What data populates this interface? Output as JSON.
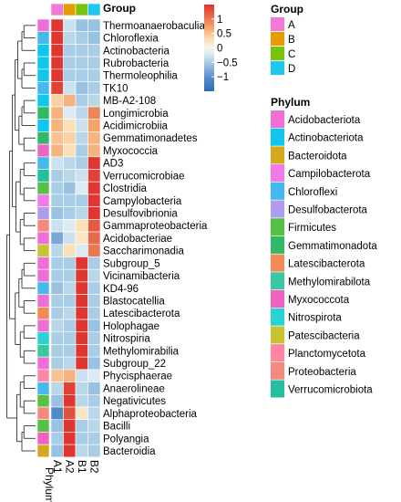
{
  "chart_data": {
    "type": "heatmap",
    "columns": [
      "A1",
      "A2",
      "B1",
      "B2"
    ],
    "column_groups": [
      "A",
      "A",
      "B",
      "B"
    ],
    "annotation_labels": {
      "top": "Group",
      "side": "Phylum"
    },
    "rows": [
      {
        "name": "Thermoanaerobaculia",
        "phylum": "Acidobacteriota",
        "values": [
          1.5,
          -0.3,
          -0.6,
          -0.6
        ]
      },
      {
        "name": "Chloroflexia",
        "phylum": "Chloroflexi",
        "values": [
          1.5,
          -0.4,
          -0.5,
          -0.6
        ]
      },
      {
        "name": "Actinobacteria",
        "phylum": "Actinobacteriota",
        "values": [
          1.5,
          -0.5,
          -0.5,
          -0.5
        ]
      },
      {
        "name": "Rubrobacteria",
        "phylum": "Actinobacteriota",
        "values": [
          1.5,
          -0.5,
          -0.5,
          -0.5
        ]
      },
      {
        "name": "Thermoleophilia",
        "phylum": "Actinobacteriota",
        "values": [
          1.5,
          -0.5,
          -0.5,
          -0.5
        ]
      },
      {
        "name": "TK10",
        "phylum": "Chloroflexi",
        "values": [
          1.4,
          -0.3,
          -0.6,
          -0.5
        ]
      },
      {
        "name": "MB-A2-108",
        "phylum": "Actinobacteriota",
        "values": [
          0.4,
          0.6,
          -0.5,
          -0.4
        ]
      },
      {
        "name": "Longimicrobia",
        "phylum": "Gemmatimonadota",
        "values": [
          0.6,
          -0.2,
          -0.4,
          0.9
        ]
      },
      {
        "name": "Acidimicrobiia",
        "phylum": "Actinobacteriota",
        "values": [
          0.6,
          0.3,
          -0.3,
          0.7
        ]
      },
      {
        "name": "Gemmatimonadetes",
        "phylum": "Gemmatimonadota",
        "values": [
          0.5,
          0.4,
          -0.4,
          0.6
        ]
      },
      {
        "name": "Myxococcia",
        "phylum": "Myxococcota",
        "values": [
          0.6,
          0.3,
          -0.5,
          0.6
        ]
      },
      {
        "name": "AD3",
        "phylum": "Chloroflexi",
        "values": [
          -0.3,
          -0.4,
          -0.5,
          1.5
        ]
      },
      {
        "name": "Verrucomicrobiae",
        "phylum": "Verrucomicrobiota",
        "values": [
          -0.5,
          -0.4,
          -0.3,
          1.4
        ]
      },
      {
        "name": "Clostridia",
        "phylum": "Firmicutes",
        "values": [
          -0.5,
          -0.6,
          -0.2,
          1.5
        ]
      },
      {
        "name": "Campylobacteria",
        "phylum": "Campilobacterota",
        "values": [
          -0.5,
          -0.5,
          -0.5,
          1.5
        ]
      },
      {
        "name": "Desulfovibrionia",
        "phylum": "Desulfobacterota",
        "values": [
          -0.6,
          -0.5,
          -0.4,
          1.5
        ]
      },
      {
        "name": "Gammaproteobacteria",
        "phylum": "Proteobacteria",
        "values": [
          -0.3,
          -0.2,
          0.3,
          1.2
        ]
      },
      {
        "name": "Acidobacteriae",
        "phylum": "Acidobacteriota",
        "values": [
          -0.8,
          -0.3,
          0.2,
          1.1
        ]
      },
      {
        "name": "Saccharimonadia",
        "phylum": "Patescibacteria",
        "values": [
          -0.4,
          0.3,
          -0.2,
          1.0
        ]
      },
      {
        "name": "Subgroup_5",
        "phylum": "Acidobacteriota",
        "values": [
          -0.5,
          -0.5,
          1.5,
          -0.5
        ]
      },
      {
        "name": "Vicinamibacteria",
        "phylum": "Acidobacteriota",
        "values": [
          -0.5,
          -0.5,
          1.5,
          -0.4
        ]
      },
      {
        "name": "KD4-96",
        "phylum": "Chloroflexi",
        "values": [
          -0.6,
          -0.4,
          1.5,
          -0.5
        ]
      },
      {
        "name": "Blastocatellia",
        "phylum": "Acidobacteriota",
        "values": [
          -0.5,
          -0.5,
          1.5,
          -0.5
        ]
      },
      {
        "name": "Latescibacterota",
        "phylum": "Latescibacterota",
        "values": [
          -0.5,
          -0.4,
          1.5,
          -0.5
        ]
      },
      {
        "name": "Holophagae",
        "phylum": "Acidobacteriota",
        "values": [
          -0.4,
          -0.5,
          1.5,
          -0.6
        ]
      },
      {
        "name": "Nitrospiria",
        "phylum": "Nitrospirota",
        "values": [
          -0.5,
          -0.5,
          1.5,
          -0.5
        ]
      },
      {
        "name": "Methylomirabilia",
        "phylum": "Methylomirabilota",
        "values": [
          -0.5,
          -0.5,
          1.5,
          -0.5
        ]
      },
      {
        "name": "Subgroup_22",
        "phylum": "Acidobacteriota",
        "values": [
          -0.5,
          -0.4,
          1.5,
          -0.6
        ]
      },
      {
        "name": "Phycisphaerae",
        "phylum": "Planctomycetota",
        "values": [
          0.5,
          0.6,
          -0.3,
          -0.2
        ]
      },
      {
        "name": "Anaerolineae",
        "phylum": "Chloroflexi",
        "values": [
          -0.4,
          1.4,
          -0.4,
          -0.6
        ]
      },
      {
        "name": "Negativicutes",
        "phylum": "Firmicutes",
        "values": [
          -0.6,
          1.5,
          -0.4,
          -0.5
        ]
      },
      {
        "name": "Alphaproteobacteria",
        "phylum": "Proteobacteria",
        "values": [
          -1.1,
          1.3,
          0.2,
          -0.4
        ]
      },
      {
        "name": "Bacilli",
        "phylum": "Firmicutes",
        "values": [
          -0.6,
          1.5,
          -0.5,
          -0.4
        ]
      },
      {
        "name": "Polyangia",
        "phylum": "Myxococcota",
        "values": [
          -0.5,
          1.5,
          -0.5,
          -0.5
        ]
      },
      {
        "name": "Bacteroidia",
        "phylum": "Bacteroidota",
        "values": [
          -0.6,
          1.5,
          -0.4,
          -0.5
        ]
      }
    ],
    "color_scale": {
      "range": [
        -1.5,
        1.5
      ],
      "ticks": [
        1,
        0.5,
        0,
        -0.5,
        -1
      ],
      "tick_labels": [
        "1",
        "0.5",
        "0",
        "−0.5",
        "−1"
      ],
      "stops": [
        {
          "value": -1.5,
          "color": "#2f6ab4"
        },
        {
          "value": -1.0,
          "color": "#5a8fcb"
        },
        {
          "value": -0.5,
          "color": "#a9cde6"
        },
        {
          "value": -0.2,
          "color": "#dcebf3"
        },
        {
          "value": 0.0,
          "color": "#f5f3ea"
        },
        {
          "value": 0.3,
          "color": "#fbe0b7"
        },
        {
          "value": 0.7,
          "color": "#f5a46b"
        },
        {
          "value": 1.2,
          "color": "#e65a43"
        },
        {
          "value": 1.5,
          "color": "#e03530"
        }
      ]
    },
    "group_legend": {
      "title": "Group",
      "items": [
        {
          "label": "A",
          "color": "#f379d7"
        },
        {
          "label": "B",
          "color": "#e69c00"
        },
        {
          "label": "C",
          "color": "#77c40e"
        },
        {
          "label": "D",
          "color": "#1fc6ef"
        }
      ]
    },
    "phylum_legend": {
      "title": "Phylum",
      "items": [
        {
          "label": "Acidobacteriota",
          "color": "#ee6fd6"
        },
        {
          "label": "Actinobacteriota",
          "color": "#10c6ef"
        },
        {
          "label": "Bacteroidota",
          "color": "#d5a91e"
        },
        {
          "label": "Campilobacterota",
          "color": "#f27ae8"
        },
        {
          "label": "Chloroflexi",
          "color": "#45b8ee"
        },
        {
          "label": "Desulfobacterota",
          "color": "#ad9cf0"
        },
        {
          "label": "Firmicutes",
          "color": "#55c245"
        },
        {
          "label": "Gemmatimonadota",
          "color": "#32b866"
        },
        {
          "label": "Latescibacterota",
          "color": "#f08a57"
        },
        {
          "label": "Methylomirabilota",
          "color": "#39c8a2"
        },
        {
          "label": "Myxococcota",
          "color": "#ef62c2"
        },
        {
          "label": "Nitrospirota",
          "color": "#28d3d3"
        },
        {
          "label": "Patescibacteria",
          "color": "#c7c433"
        },
        {
          "label": "Planctomycetota",
          "color": "#fe86a4"
        },
        {
          "label": "Proteobacteria",
          "color": "#f48a7e"
        },
        {
          "label": "Verrucomicrobiota",
          "color": "#25bfa0"
        }
      ]
    }
  }
}
